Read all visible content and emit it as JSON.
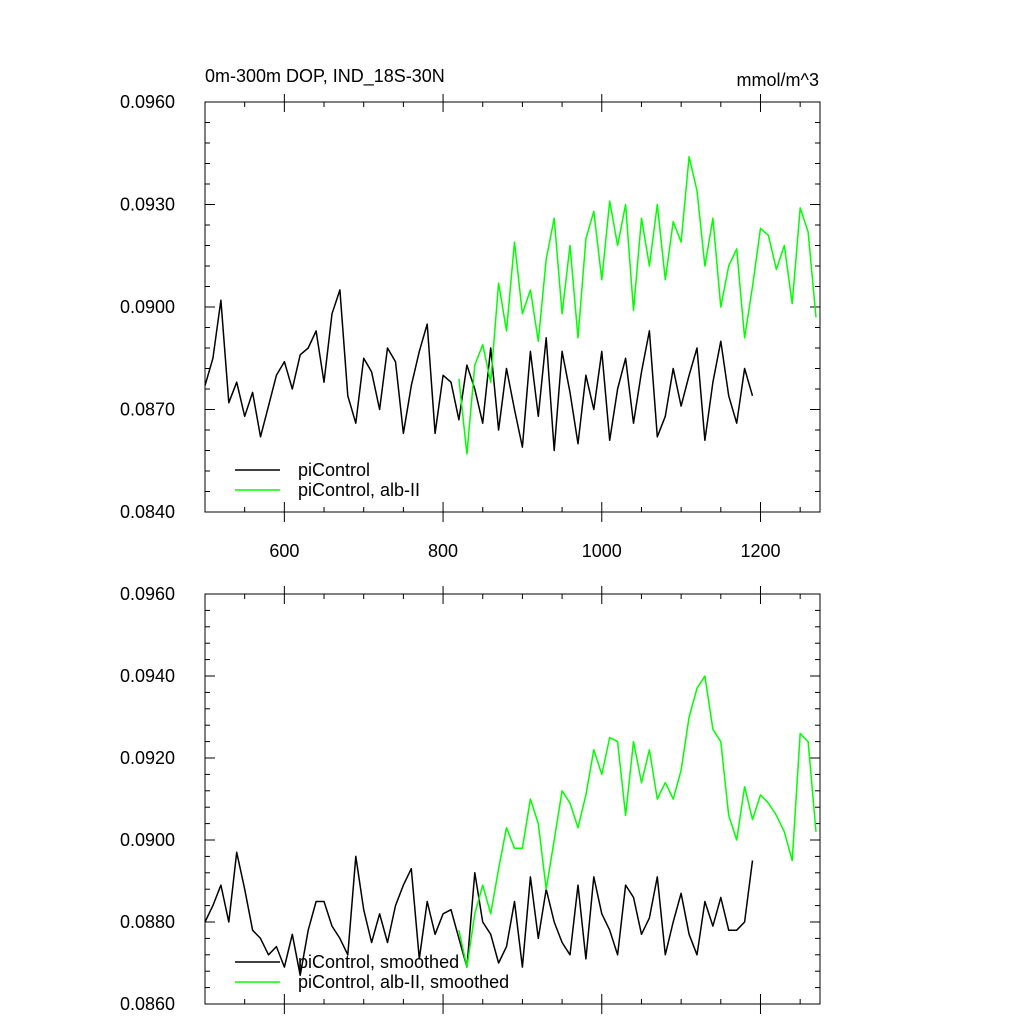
{
  "title": "0m-300m DOP, IND_18S-30N",
  "units": "mmol/m^3",
  "colors": {
    "black_series": "#000000",
    "green_series": "#00ff00"
  },
  "chart_data": [
    {
      "type": "line",
      "grid": false,
      "legend_position": "bottom-left",
      "xlim": [
        500,
        1275
      ],
      "ylim": [
        0.084,
        0.096
      ],
      "xticks": [
        600,
        800,
        1000,
        1200
      ],
      "xtick_labels": [
        "600",
        "800",
        "1000",
        "1200"
      ],
      "yticks": [
        0.084,
        0.087,
        0.09,
        0.093,
        0.096
      ],
      "ytick_labels": [
        "0.0840",
        "0.0870",
        "0.0900",
        "0.0930",
        "0.0960"
      ],
      "series": [
        {
          "name": "piControl",
          "color": "#000000",
          "x_start": 500,
          "x_step": 10,
          "values": [
            0.0877,
            0.0885,
            0.0902,
            0.0872,
            0.0878,
            0.0868,
            0.0875,
            0.0862,
            0.0871,
            0.088,
            0.0884,
            0.0876,
            0.0886,
            0.0888,
            0.0893,
            0.0878,
            0.0898,
            0.0905,
            0.0874,
            0.0866,
            0.0885,
            0.0881,
            0.087,
            0.0888,
            0.0884,
            0.0863,
            0.0877,
            0.0887,
            0.0895,
            0.0863,
            0.088,
            0.0878,
            0.0867,
            0.0883,
            0.0876,
            0.0866,
            0.0888,
            0.0864,
            0.0882,
            0.087,
            0.0859,
            0.0887,
            0.0868,
            0.0891,
            0.0858,
            0.0887,
            0.0875,
            0.086,
            0.088,
            0.087,
            0.0887,
            0.0861,
            0.0876,
            0.0885,
            0.0866,
            0.0881,
            0.0893,
            0.0862,
            0.0868,
            0.0882,
            0.0871,
            0.088,
            0.0888,
            0.0861,
            0.0878,
            0.089,
            0.0874,
            0.0866,
            0.0882,
            0.0874
          ]
        },
        {
          "name": "piControl, alb-II",
          "color": "#00ff00",
          "x_start": 820,
          "x_step": 10,
          "values": [
            0.0879,
            0.0857,
            0.0883,
            0.0889,
            0.0878,
            0.0907,
            0.0893,
            0.0919,
            0.0898,
            0.0905,
            0.089,
            0.0914,
            0.0926,
            0.0898,
            0.0918,
            0.0891,
            0.092,
            0.0928,
            0.0908,
            0.0931,
            0.0918,
            0.093,
            0.0899,
            0.0926,
            0.0912,
            0.093,
            0.0908,
            0.0925,
            0.0919,
            0.0944,
            0.0934,
            0.0912,
            0.0926,
            0.09,
            0.0912,
            0.0917,
            0.0891,
            0.0906,
            0.0923,
            0.0921,
            0.0911,
            0.0918,
            0.0901,
            0.0929,
            0.0922,
            0.0897
          ]
        }
      ]
    },
    {
      "type": "line",
      "grid": false,
      "legend_position": "bottom-left",
      "xlim": [
        500,
        1275
      ],
      "ylim": [
        0.086,
        0.096
      ],
      "xticks": [
        600,
        800,
        1000,
        1200
      ],
      "yticks": [
        0.086,
        0.088,
        0.09,
        0.092,
        0.094,
        0.096
      ],
      "ytick_labels": [
        "0.0860",
        "0.0880",
        "0.0900",
        "0.0920",
        "0.0940",
        "0.0960"
      ],
      "series": [
        {
          "name": "piControl, smoothed",
          "color": "#000000",
          "x_start": 500,
          "x_step": 10,
          "values": [
            0.088,
            0.0884,
            0.0889,
            0.088,
            0.0897,
            0.0888,
            0.0878,
            0.0876,
            0.0872,
            0.0874,
            0.0869,
            0.0877,
            0.0867,
            0.0878,
            0.0885,
            0.0885,
            0.0879,
            0.0876,
            0.0872,
            0.0896,
            0.0883,
            0.0875,
            0.0882,
            0.0875,
            0.0884,
            0.0889,
            0.0893,
            0.0871,
            0.0885,
            0.0877,
            0.0882,
            0.0883,
            0.0876,
            0.0869,
            0.0892,
            0.088,
            0.0877,
            0.087,
            0.0874,
            0.0885,
            0.0869,
            0.0891,
            0.0876,
            0.0888,
            0.088,
            0.0875,
            0.0872,
            0.0889,
            0.0871,
            0.0891,
            0.0882,
            0.0878,
            0.0872,
            0.0889,
            0.0886,
            0.0877,
            0.0881,
            0.0891,
            0.0872,
            0.088,
            0.0887,
            0.0877,
            0.0872,
            0.0885,
            0.0879,
            0.0886,
            0.0878,
            0.0878,
            0.088,
            0.0895
          ]
        },
        {
          "name": "piControl, alb-II, smoothed",
          "color": "#00ff00",
          "x_start": 820,
          "x_step": 10,
          "values": [
            0.0878,
            0.0869,
            0.0882,
            0.0889,
            0.0882,
            0.0893,
            0.0903,
            0.0898,
            0.0898,
            0.091,
            0.0904,
            0.0888,
            0.09,
            0.0912,
            0.0909,
            0.0903,
            0.0911,
            0.0922,
            0.0916,
            0.0925,
            0.0924,
            0.0906,
            0.0924,
            0.0914,
            0.0922,
            0.091,
            0.0914,
            0.091,
            0.0917,
            0.093,
            0.0937,
            0.094,
            0.0927,
            0.0924,
            0.0906,
            0.09,
            0.0913,
            0.0905,
            0.0911,
            0.0909,
            0.0906,
            0.0902,
            0.0895,
            0.0926,
            0.0924,
            0.0902
          ]
        }
      ]
    }
  ]
}
